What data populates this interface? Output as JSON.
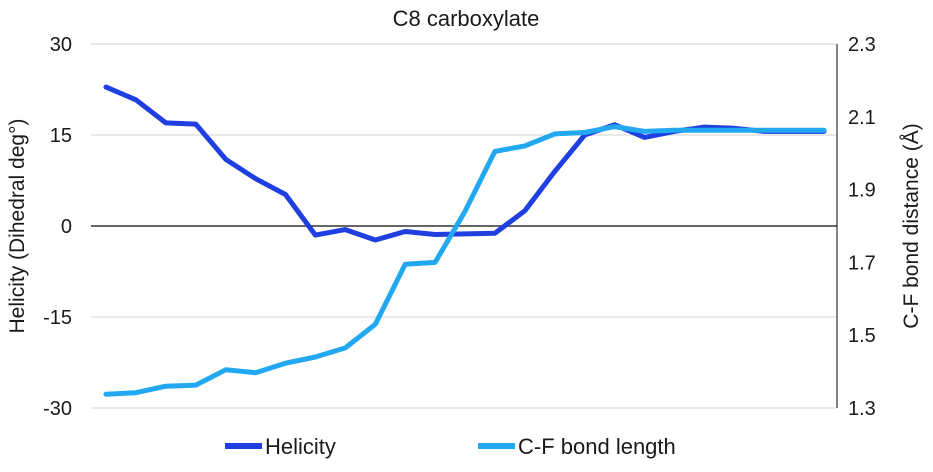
{
  "chart_data": {
    "type": "line",
    "title": "C8 carboxylate",
    "ylabel": "Helicity (Dihedral deg°)",
    "y2label": "C-F bond distance (Å)",
    "ylim": [
      -30,
      30
    ],
    "y2lim": [
      1.3,
      2.3
    ],
    "yticks": [
      "30",
      "15",
      "0",
      "-15",
      "-30"
    ],
    "y2ticks": [
      "2.3",
      "2.1",
      "1.9",
      "1.7",
      "1.5",
      "1.3"
    ],
    "grid": true,
    "legend_position": "bottom",
    "colors": {
      "helicity": "#1f3fe0",
      "cf_bond": "#21a8f0"
    },
    "x": [
      1,
      2,
      3,
      4,
      5,
      6,
      7,
      8,
      9,
      10,
      11,
      12,
      13,
      14,
      15,
      16,
      17,
      18,
      19,
      20,
      21,
      22,
      23,
      24,
      25
    ],
    "series": [
      {
        "name": "Helicity",
        "axis": "left",
        "values": [
          22.9,
          20.8,
          17.0,
          16.8,
          11.0,
          7.8,
          5.2,
          -1.5,
          -0.6,
          -2.3,
          -0.9,
          -1.4,
          -1.3,
          -1.2,
          2.5,
          9.0,
          15.0,
          16.7,
          14.6,
          15.6,
          16.3,
          16.1,
          15.6,
          15.6,
          15.6
        ]
      },
      {
        "name": "C-F bond length",
        "axis": "right",
        "values": [
          1.338,
          1.342,
          1.36,
          1.363,
          1.405,
          1.397,
          1.423,
          1.44,
          1.465,
          1.53,
          1.695,
          1.7,
          1.84,
          2.005,
          2.02,
          2.053,
          2.057,
          2.073,
          2.06,
          2.063,
          2.063,
          2.063,
          2.063,
          2.063,
          2.063
        ]
      }
    ]
  }
}
